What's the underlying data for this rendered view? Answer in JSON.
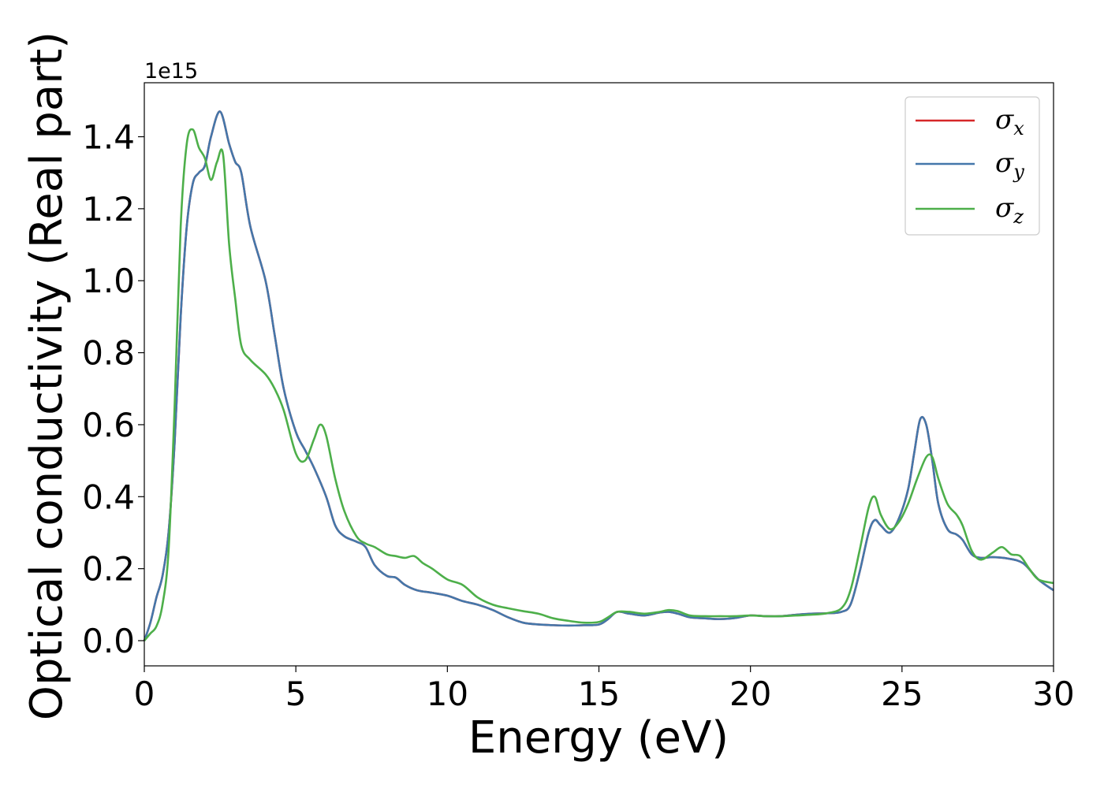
{
  "chart_data": {
    "type": "line",
    "xlabel": "Energy (eV)",
    "ylabel": "Optical conductivity (Real part)",
    "y_offset_text": "1e15",
    "xlim": [
      0,
      30
    ],
    "ylim": [
      -0.07,
      1.55
    ],
    "x_ticks": [
      0,
      5,
      10,
      15,
      20,
      25,
      30
    ],
    "x_tick_labels": [
      "0",
      "5",
      "10",
      "15",
      "20",
      "25",
      "30"
    ],
    "y_ticks": [
      0.0,
      0.2,
      0.4,
      0.6,
      0.8,
      1.0,
      1.2,
      1.4
    ],
    "y_tick_labels": [
      "0.0",
      "0.2",
      "0.4",
      "0.6",
      "0.8",
      "1.0",
      "1.2",
      "1.4"
    ],
    "grid": false,
    "legend_placement": "upper right",
    "series": [
      {
        "name": "σx",
        "legend_symbol": "σ",
        "legend_sub": "x",
        "color": "#d62728",
        "x": [
          0,
          0.2,
          0.4,
          0.6,
          0.8,
          1.0,
          1.2,
          1.4,
          1.6,
          1.8,
          2.0,
          2.2,
          2.5,
          2.8,
          3.0,
          3.2,
          3.5,
          4.0,
          4.3,
          4.6,
          5.0,
          5.3,
          5.6,
          6.0,
          6.3,
          6.6,
          7.0,
          7.3,
          7.6,
          8.0,
          8.3,
          8.6,
          9.0,
          9.5,
          10.0,
          10.5,
          11.0,
          11.5,
          12.0,
          12.5,
          13.0,
          13.5,
          14.0,
          14.5,
          15.0,
          15.3,
          15.6,
          16.0,
          16.5,
          17.0,
          17.3,
          17.6,
          18.0,
          18.5,
          19.0,
          19.5,
          20.0,
          20.5,
          21.0,
          21.5,
          22.0,
          22.5,
          23.0,
          23.3,
          23.6,
          23.9,
          24.1,
          24.3,
          24.6,
          24.9,
          25.2,
          25.4,
          25.6,
          25.8,
          26.0,
          26.2,
          26.5,
          26.8,
          27.0,
          27.3,
          27.6,
          28.0,
          28.5,
          29.0,
          29.5,
          30.0
        ],
        "y": [
          0.0,
          0.05,
          0.12,
          0.18,
          0.3,
          0.55,
          0.9,
          1.15,
          1.27,
          1.3,
          1.32,
          1.4,
          1.47,
          1.38,
          1.33,
          1.3,
          1.15,
          1.0,
          0.85,
          0.7,
          0.58,
          0.53,
          0.48,
          0.4,
          0.32,
          0.29,
          0.275,
          0.26,
          0.21,
          0.18,
          0.175,
          0.155,
          0.14,
          0.133,
          0.125,
          0.11,
          0.1,
          0.085,
          0.065,
          0.05,
          0.045,
          0.043,
          0.042,
          0.043,
          0.045,
          0.06,
          0.08,
          0.075,
          0.07,
          0.078,
          0.08,
          0.075,
          0.065,
          0.062,
          0.06,
          0.063,
          0.07,
          0.068,
          0.068,
          0.072,
          0.075,
          0.076,
          0.08,
          0.1,
          0.19,
          0.3,
          0.335,
          0.32,
          0.3,
          0.34,
          0.42,
          0.52,
          0.615,
          0.6,
          0.5,
          0.38,
          0.31,
          0.295,
          0.28,
          0.24,
          0.23,
          0.232,
          0.228,
          0.215,
          0.17,
          0.14
        ]
      },
      {
        "name": "σy",
        "legend_symbol": "σ",
        "legend_sub": "y",
        "color": "#4477aa",
        "x": [
          0,
          0.2,
          0.4,
          0.6,
          0.8,
          1.0,
          1.2,
          1.4,
          1.6,
          1.8,
          2.0,
          2.2,
          2.5,
          2.8,
          3.0,
          3.2,
          3.5,
          4.0,
          4.3,
          4.6,
          5.0,
          5.3,
          5.6,
          6.0,
          6.3,
          6.6,
          7.0,
          7.3,
          7.6,
          8.0,
          8.3,
          8.6,
          9.0,
          9.5,
          10.0,
          10.5,
          11.0,
          11.5,
          12.0,
          12.5,
          13.0,
          13.5,
          14.0,
          14.5,
          15.0,
          15.3,
          15.6,
          16.0,
          16.5,
          17.0,
          17.3,
          17.6,
          18.0,
          18.5,
          19.0,
          19.5,
          20.0,
          20.5,
          21.0,
          21.5,
          22.0,
          22.5,
          23.0,
          23.3,
          23.6,
          23.9,
          24.1,
          24.3,
          24.6,
          24.9,
          25.2,
          25.4,
          25.6,
          25.8,
          26.0,
          26.2,
          26.5,
          26.8,
          27.0,
          27.3,
          27.6,
          28.0,
          28.5,
          29.0,
          29.5,
          30.0
        ],
        "y": [
          0.0,
          0.05,
          0.12,
          0.18,
          0.3,
          0.55,
          0.9,
          1.15,
          1.27,
          1.3,
          1.32,
          1.4,
          1.47,
          1.38,
          1.33,
          1.3,
          1.15,
          1.0,
          0.85,
          0.7,
          0.58,
          0.53,
          0.48,
          0.4,
          0.32,
          0.29,
          0.275,
          0.26,
          0.21,
          0.18,
          0.175,
          0.155,
          0.14,
          0.133,
          0.125,
          0.11,
          0.1,
          0.085,
          0.065,
          0.05,
          0.045,
          0.043,
          0.042,
          0.043,
          0.045,
          0.06,
          0.08,
          0.075,
          0.07,
          0.078,
          0.08,
          0.075,
          0.065,
          0.062,
          0.06,
          0.063,
          0.07,
          0.068,
          0.068,
          0.072,
          0.075,
          0.076,
          0.08,
          0.1,
          0.19,
          0.3,
          0.335,
          0.32,
          0.3,
          0.34,
          0.42,
          0.52,
          0.615,
          0.6,
          0.5,
          0.38,
          0.31,
          0.295,
          0.28,
          0.24,
          0.23,
          0.232,
          0.228,
          0.215,
          0.17,
          0.14
        ]
      },
      {
        "name": "σz",
        "legend_symbol": "σ",
        "legend_sub": "z",
        "color": "#4daf4a",
        "x": [
          0,
          0.2,
          0.4,
          0.6,
          0.8,
          1.0,
          1.2,
          1.4,
          1.6,
          1.8,
          2.0,
          2.2,
          2.4,
          2.6,
          2.8,
          3.0,
          3.2,
          3.5,
          4.0,
          4.3,
          4.6,
          5.0,
          5.3,
          5.6,
          5.8,
          6.0,
          6.3,
          6.6,
          7.0,
          7.3,
          7.6,
          8.0,
          8.3,
          8.6,
          8.9,
          9.2,
          9.5,
          10.0,
          10.5,
          11.0,
          11.5,
          12.0,
          12.5,
          13.0,
          13.5,
          14.0,
          14.5,
          15.0,
          15.3,
          15.6,
          16.0,
          16.5,
          17.0,
          17.3,
          17.6,
          18.0,
          18.5,
          19.0,
          19.5,
          20.0,
          20.5,
          21.0,
          21.5,
          22.0,
          22.5,
          23.0,
          23.3,
          23.6,
          23.9,
          24.1,
          24.3,
          24.6,
          24.9,
          25.2,
          25.5,
          25.8,
          26.0,
          26.2,
          26.5,
          26.8,
          27.0,
          27.3,
          27.6,
          28.0,
          28.3,
          28.6,
          28.9,
          29.2,
          29.5,
          30.0
        ],
        "y": [
          0.0,
          0.02,
          0.04,
          0.1,
          0.25,
          0.65,
          1.15,
          1.38,
          1.42,
          1.37,
          1.34,
          1.28,
          1.33,
          1.35,
          1.1,
          0.95,
          0.82,
          0.78,
          0.74,
          0.7,
          0.64,
          0.52,
          0.5,
          0.56,
          0.6,
          0.57,
          0.45,
          0.36,
          0.29,
          0.27,
          0.26,
          0.24,
          0.235,
          0.23,
          0.235,
          0.215,
          0.2,
          0.17,
          0.155,
          0.12,
          0.1,
          0.09,
          0.082,
          0.075,
          0.062,
          0.055,
          0.05,
          0.052,
          0.065,
          0.08,
          0.08,
          0.075,
          0.08,
          0.085,
          0.082,
          0.07,
          0.068,
          0.068,
          0.068,
          0.07,
          0.068,
          0.068,
          0.07,
          0.072,
          0.076,
          0.09,
          0.14,
          0.25,
          0.37,
          0.4,
          0.35,
          0.31,
          0.33,
          0.38,
          0.45,
          0.51,
          0.51,
          0.45,
          0.38,
          0.35,
          0.32,
          0.25,
          0.225,
          0.245,
          0.26,
          0.24,
          0.235,
          0.2,
          0.17,
          0.16
        ]
      }
    ]
  }
}
